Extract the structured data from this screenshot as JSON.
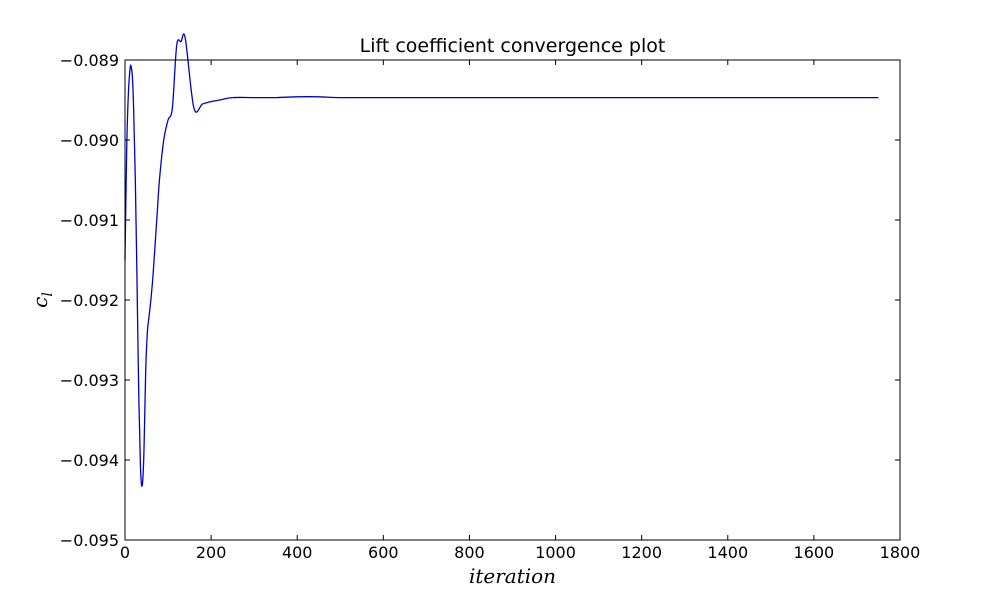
{
  "chart_data": {
    "type": "line",
    "title": "Lift coefficient convergence plot",
    "xlabel": "iteration",
    "ylabel": "c_l",
    "ylabel_main": "c",
    "ylabel_sub": "l",
    "xlim": [
      0,
      1800
    ],
    "ylim": [
      -0.095,
      -0.089
    ],
    "x_ticks": [
      0,
      200,
      400,
      600,
      800,
      1000,
      1200,
      1400,
      1600,
      1800
    ],
    "x_tick_labels": [
      "0",
      "200",
      "400",
      "600",
      "800",
      "1000",
      "1200",
      "1400",
      "1600",
      "1800"
    ],
    "y_ticks": [
      -0.095,
      -0.094,
      -0.093,
      -0.092,
      -0.091,
      -0.09,
      -0.089
    ],
    "y_tick_labels": [
      "−0.095",
      "−0.094",
      "−0.093",
      "−0.092",
      "−0.091",
      "−0.090",
      "−0.089"
    ],
    "grid": false,
    "series": [
      {
        "color": "#0000cc",
        "x": [
          0,
          4,
          8,
          12,
          14,
          17,
          20,
          24,
          28,
          32,
          36,
          40,
          44,
          48,
          52,
          56,
          60,
          65,
          70,
          75,
          80,
          90,
          100,
          110,
          120,
          130,
          140,
          160,
          180,
          200,
          220,
          250,
          300,
          350,
          400,
          450,
          500,
          600,
          700,
          800,
          1000,
          1200,
          1400,
          1600,
          1750
        ],
        "y": [
          -0.0915,
          -0.0901,
          -0.0894,
          -0.0891,
          -0.08908,
          -0.0892,
          -0.0896,
          -0.0905,
          -0.0918,
          -0.0932,
          -0.0941,
          -0.09432,
          -0.0939,
          -0.0929,
          -0.0924,
          -0.0922,
          -0.092,
          -0.0917,
          -0.0913,
          -0.0909,
          -0.0905,
          -0.09,
          -0.08975,
          -0.0896,
          -0.08882,
          -0.08877,
          -0.08873,
          -0.0896,
          -0.08955,
          -0.08952,
          -0.0895,
          -0.08947,
          -0.08947,
          -0.08947,
          -0.08946,
          -0.08946,
          -0.08947,
          -0.08947,
          -0.08947,
          -0.08947,
          -0.08947,
          -0.08947,
          -0.08947,
          -0.08947,
          -0.08947
        ]
      }
    ]
  }
}
